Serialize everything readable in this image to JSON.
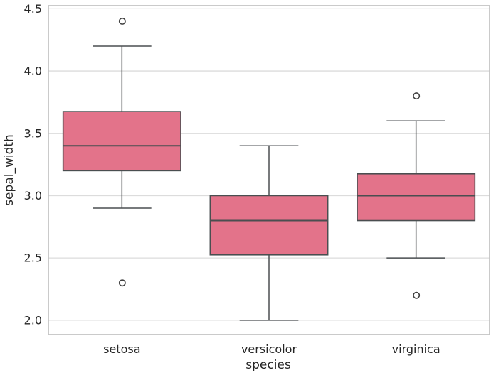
{
  "chart_data": {
    "type": "box",
    "title": "",
    "xlabel": "species",
    "ylabel": "sepal_width",
    "categories": [
      "setosa",
      "versicolor",
      "virginica"
    ],
    "yticks": [
      2.0,
      2.5,
      3.0,
      3.5,
      4.0,
      4.5
    ],
    "ytick_labels": [
      "2.0",
      "2.5",
      "3.0",
      "3.5",
      "4.0",
      "4.5"
    ],
    "ylim": [
      1.885,
      4.525
    ],
    "grid": "horizontal",
    "legend_position": "none",
    "series": [
      {
        "category": "setosa",
        "whisker_low": 2.9,
        "q1": 3.2,
        "median": 3.4,
        "q3": 3.675,
        "whisker_high": 4.2,
        "outliers": [
          4.4,
          2.3
        ]
      },
      {
        "category": "versicolor",
        "whisker_low": 2.0,
        "q1": 2.525,
        "median": 2.8,
        "q3": 3.0,
        "whisker_high": 3.4,
        "outliers": []
      },
      {
        "category": "virginica",
        "whisker_low": 2.5,
        "q1": 2.8,
        "median": 3.0,
        "q3": 3.175,
        "whisker_high": 3.6,
        "outliers": [
          3.8,
          2.2
        ]
      }
    ],
    "colors": {
      "box_fill": "#E3738A",
      "box_edge": "#4A4E50",
      "median_line": "#4A4E50",
      "whisker": "#4A4E50",
      "outlier_edge": "#3F3F3F",
      "grid": "#DCDCDC",
      "axes_edge": "#C4C4C4",
      "text": "#262626",
      "background": "#FFFFFF"
    }
  }
}
